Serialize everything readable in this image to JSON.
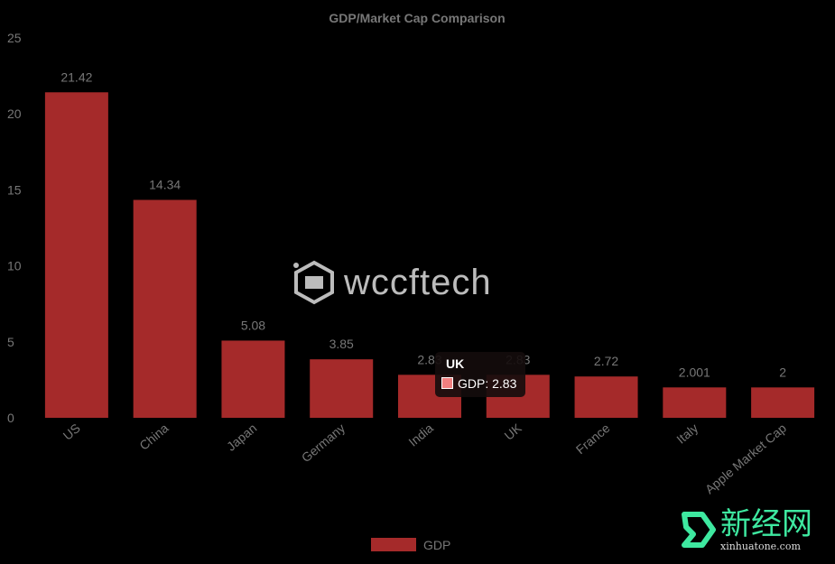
{
  "chart_data": {
    "type": "bar",
    "title": "GDP/Market Cap Comparison",
    "categories": [
      "US",
      "China",
      "Japan",
      "Germany",
      "India",
      "UK",
      "France",
      "Italy",
      "Apple Market Cap"
    ],
    "series": [
      {
        "name": "GDP",
        "values": [
          21.42,
          14.34,
          5.08,
          3.85,
          2.83,
          2.83,
          2.72,
          2.001,
          2
        ],
        "labels": [
          "21.42",
          "14.34",
          "5.08",
          "3.85",
          "2.83",
          "2.83",
          "2.72",
          "2.001",
          "2"
        ],
        "color": "#a52a2a"
      }
    ],
    "ylim": [
      0,
      25
    ],
    "yticks": [
      "0",
      "5",
      "10",
      "15",
      "20",
      "25"
    ],
    "grid": false,
    "legend": "bottom"
  },
  "tooltip": {
    "title": "UK",
    "body": "GDP: 2.83",
    "color": "#f08080"
  },
  "watermark": {
    "text": "wccftech"
  },
  "corner_logo": {
    "cn": "新经网",
    "url": "xinhuatone.com"
  }
}
